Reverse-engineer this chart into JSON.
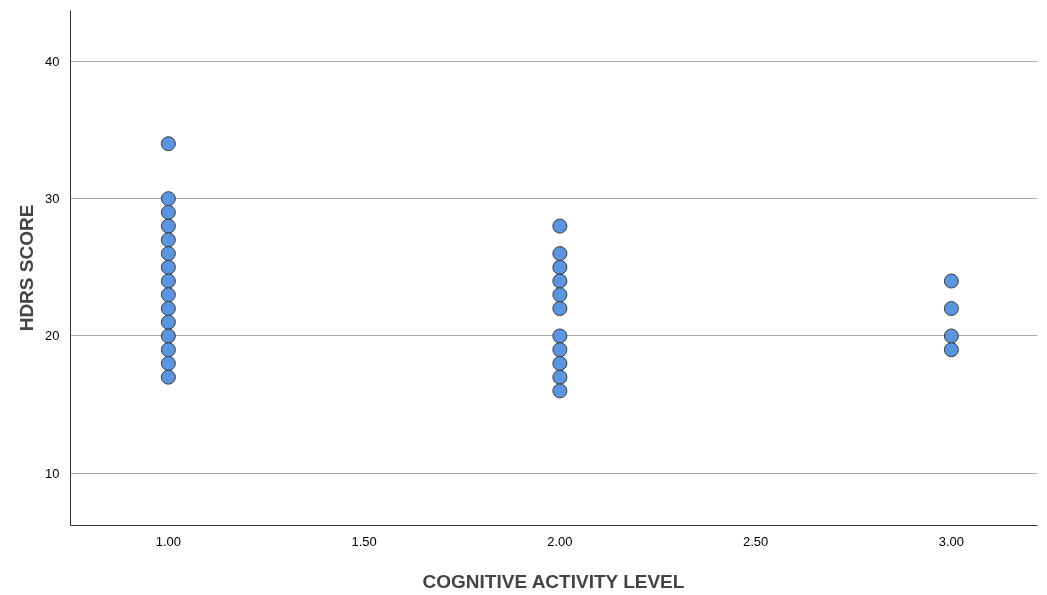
{
  "chart_data": {
    "type": "scatter",
    "xlabel": "COGNITIVE ACTIVITY LEVEL",
    "ylabel": "HDRS SCORE",
    "x": [
      1,
      1,
      1,
      1,
      1,
      1,
      1,
      1,
      1,
      1,
      1,
      1,
      1,
      1,
      1,
      2,
      2,
      2,
      2,
      2,
      2,
      2,
      2,
      2,
      2,
      2,
      3,
      3,
      3,
      3
    ],
    "series": [
      {
        "color": "#5b95e0",
        "values": [
          34,
          30,
          29,
          28,
          27,
          26,
          25,
          24,
          23,
          22,
          21,
          20,
          19,
          18,
          17,
          28,
          26,
          25,
          24,
          23,
          22,
          20,
          19,
          18,
          17,
          16,
          24,
          22,
          20,
          19
        ]
      }
    ],
    "xlim": [
      0.75,
      3.22
    ],
    "ylim": [
      6.2,
      43.7
    ],
    "xticks": [
      {
        "value": 1,
        "label": "1.00"
      },
      {
        "value": 1.5,
        "label": "1.50"
      },
      {
        "value": 2,
        "label": "2.00"
      },
      {
        "value": 2.5,
        "label": "2.50"
      },
      {
        "value": 3,
        "label": "3.00"
      }
    ],
    "yticks": [
      10,
      20,
      30,
      40
    ],
    "grid": "y",
    "marker": "circle"
  }
}
